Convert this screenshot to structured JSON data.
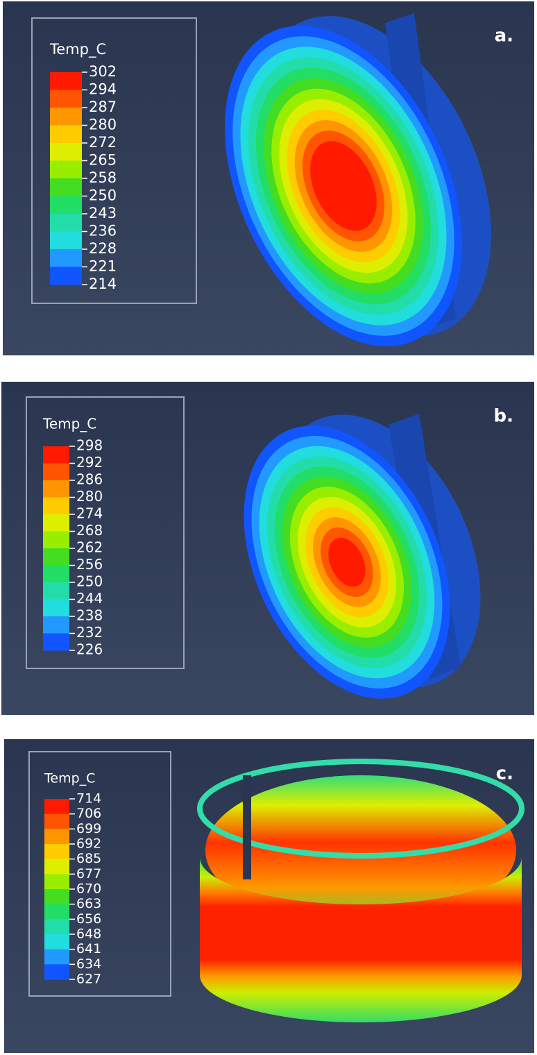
{
  "panels": [
    {
      "label": "a.",
      "legend_title": "Temp_C",
      "legend_values": [
        302,
        294,
        287,
        280,
        272,
        265,
        258,
        250,
        243,
        236,
        228,
        221,
        214
      ]
    },
    {
      "label": "b.",
      "legend_title": "Temp_C",
      "legend_values": [
        298,
        292,
        286,
        280,
        274,
        268,
        262,
        256,
        250,
        244,
        238,
        232,
        226
      ]
    },
    {
      "label": "c.",
      "legend_title": "Temp_C",
      "legend_values": [
        714,
        706,
        699,
        692,
        685,
        677,
        670,
        663,
        656,
        648,
        641,
        634,
        627
      ]
    }
  ]
}
